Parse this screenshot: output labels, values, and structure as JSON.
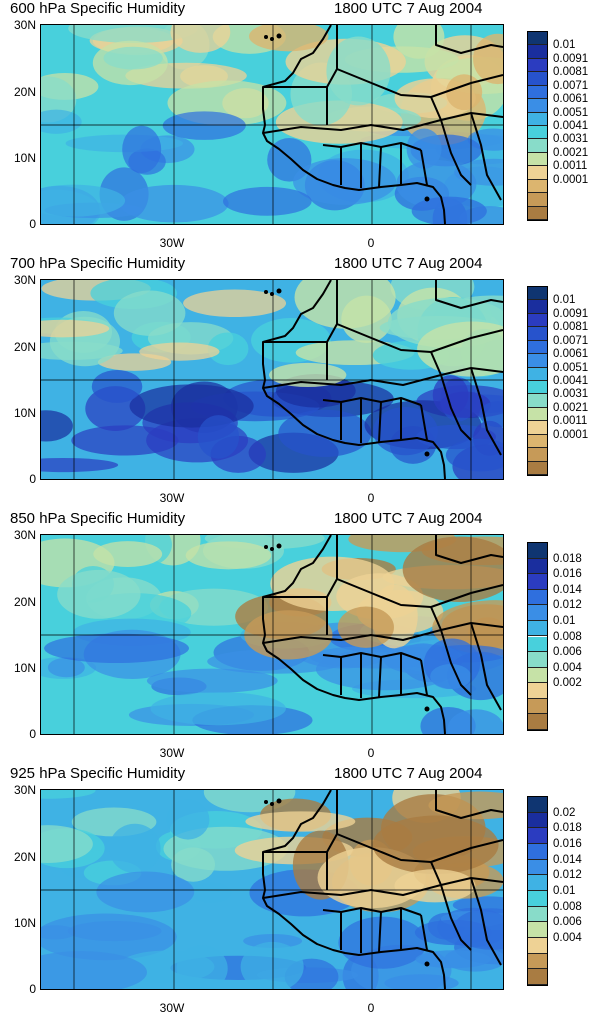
{
  "panels": [
    {
      "level_title": "600 hPa Specific Humidity",
      "time_title": "1800 UTC 7 Aug 2004",
      "lat_labels": [
        "30N",
        "20N",
        "10N",
        "0"
      ],
      "lon_labels": [
        "30W",
        "0"
      ],
      "colorbar_labels": [
        "0.01",
        "0.0091",
        "0.0081",
        "0.0071",
        "0.0061",
        "0.0051",
        "0.0041",
        "0.0031",
        "0.0021",
        "0.0011",
        "0.0001"
      ],
      "colors": [
        "#0f3571",
        "#1a2e9e",
        "#2b3cc0",
        "#2753cc",
        "#2f6fde",
        "#3a8ee6",
        "#3fb2e4",
        "#48d0dc",
        "#88dcc9",
        "#c6e2a7",
        "#eed295",
        "#dcb56f",
        "#c69a58",
        "#a97c42"
      ]
    },
    {
      "level_title": "700 hPa Specific Humidity",
      "time_title": "1800 UTC 7 Aug 2004",
      "lat_labels": [
        "30N",
        "20N",
        "10N",
        "0"
      ],
      "lon_labels": [
        "30W",
        "0"
      ],
      "colorbar_labels": [
        "0.01",
        "0.0091",
        "0.0081",
        "0.0071",
        "0.0061",
        "0.0051",
        "0.0041",
        "0.0031",
        "0.0021",
        "0.0011",
        "0.0001"
      ],
      "colors": [
        "#0f3571",
        "#1a2e9e",
        "#2b3cc0",
        "#2753cc",
        "#2f6fde",
        "#3a8ee6",
        "#3fb2e4",
        "#48d0dc",
        "#88dcc9",
        "#c6e2a7",
        "#eed295",
        "#dcb56f",
        "#c69a58",
        "#a97c42"
      ]
    },
    {
      "level_title": "850 hPa Specific Humidity",
      "time_title": "1800 UTC 7 Aug 2004",
      "lat_labels": [
        "30N",
        "20N",
        "10N",
        "0"
      ],
      "lon_labels": [
        "30W",
        "0"
      ],
      "colorbar_labels": [
        "0.018",
        "0.016",
        "0.014",
        "0.012",
        "0.01",
        "0.008",
        "0.006",
        "0.004",
        "0.002"
      ],
      "colors": [
        "#0f3571",
        "#1a2e9e",
        "#2b3cc0",
        "#2f6fde",
        "#3a8ee6",
        "#3fb2e4",
        "#48d0dc",
        "#88dcc9",
        "#c6e2a7",
        "#eed295",
        "#c69a58",
        "#a97c42"
      ]
    },
    {
      "level_title": "925 hPa Specific Humidity",
      "time_title": "1800 UTC 7 Aug 2004",
      "lat_labels": [
        "30N",
        "20N",
        "10N",
        "0"
      ],
      "lon_labels": [
        "30W",
        "0"
      ],
      "colorbar_labels": [
        "0.02",
        "0.018",
        "0.016",
        "0.014",
        "0.012",
        "0.01",
        "0.008",
        "0.006",
        "0.004"
      ],
      "colors": [
        "#0f3571",
        "#1a2e9e",
        "#2b3cc0",
        "#2f6fde",
        "#3a8ee6",
        "#3fb2e4",
        "#48d0dc",
        "#88dcc9",
        "#c6e2a7",
        "#eed295",
        "#c69a58",
        "#a97c42"
      ]
    }
  ]
}
